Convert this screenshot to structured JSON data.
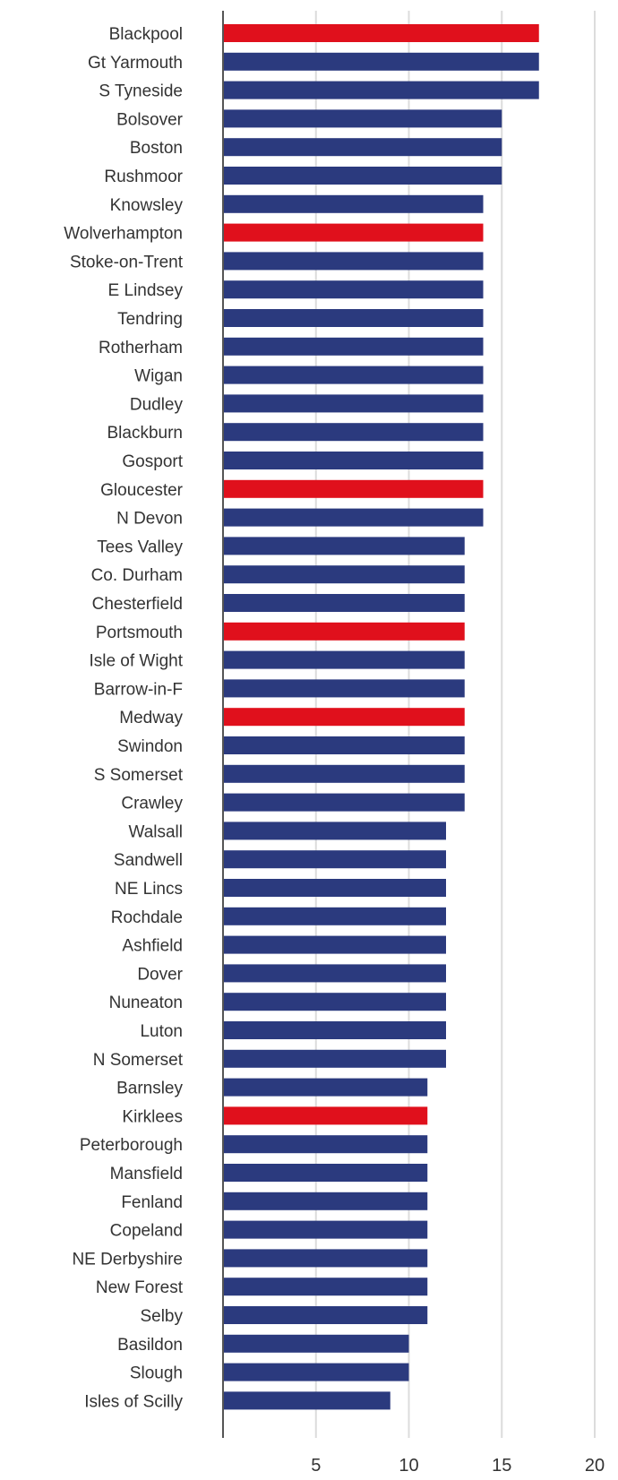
{
  "chart_data": {
    "type": "bar",
    "orientation": "horizontal",
    "title": "",
    "xlabel": "",
    "ylabel": "",
    "xlim": [
      0,
      20
    ],
    "xticks": [
      5,
      10,
      15,
      20
    ],
    "grid": "vertical gridlines",
    "legend": "none",
    "colors": {
      "default": "#2b3a7e",
      "highlight": "#e0101c"
    },
    "categories": [
      "Blackpool",
      "Gt Yarmouth",
      "S Tyneside",
      "Bolsover",
      "Boston",
      "Rushmoor",
      "Knowsley",
      "Wolverhampton",
      "Stoke-on-Trent",
      "E Lindsey",
      "Tendring",
      "Rotherham",
      "Wigan",
      "Dudley",
      "Blackburn",
      "Gosport",
      "Gloucester",
      "N Devon",
      "Tees Valley",
      "Co. Durham",
      "Chesterfield",
      "Portsmouth",
      "Isle of Wight",
      "Barrow-in-F",
      "Medway",
      "Swindon",
      "S Somerset",
      "Crawley",
      "Walsall",
      "Sandwell",
      "NE Lincs",
      "Rochdale",
      "Ashfield",
      "Dover",
      "Nuneaton",
      "Luton",
      "N Somerset",
      "Barnsley",
      "Kirklees",
      "Peterborough",
      "Mansfield",
      "Fenland",
      "Copeland",
      "NE Derbyshire",
      "New Forest",
      "Selby",
      "Basildon",
      "Slough",
      "Isles of Scilly"
    ],
    "values": [
      17,
      17,
      17,
      15,
      15,
      15,
      14,
      14,
      14,
      14,
      14,
      14,
      14,
      14,
      14,
      14,
      14,
      14,
      13,
      13,
      13,
      13,
      13,
      13,
      13,
      13,
      13,
      13,
      12,
      12,
      12,
      12,
      12,
      12,
      12,
      12,
      12,
      11,
      11,
      11,
      11,
      11,
      11,
      11,
      11,
      11,
      10,
      10,
      9
    ],
    "highlighted": [
      "Blackpool",
      "Wolverhampton",
      "Gloucester",
      "Portsmouth",
      "Medway",
      "Kirklees"
    ]
  }
}
